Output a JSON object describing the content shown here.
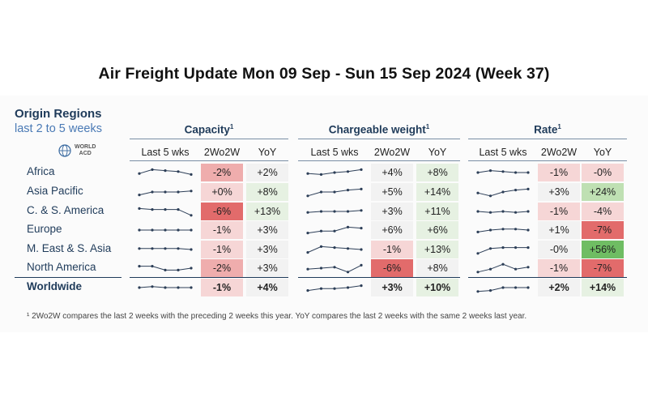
{
  "title": "Air Freight Update Mon 09 Sep - Sun 15 Sep 2024 (Week 37)",
  "origin": {
    "title": "Origin Regions",
    "subtitle": "last 2 to 5 weeks"
  },
  "logo": {
    "line1": "WORLD",
    "line2": "ACD",
    "icon": "globe-icon"
  },
  "groups": [
    {
      "key": "capacity",
      "label": "Capacity",
      "sup": "1"
    },
    {
      "key": "cw",
      "label": "Chargeable weight",
      "sup": "1"
    },
    {
      "key": "rate",
      "label": "Rate",
      "sup": "1"
    }
  ],
  "subheaders": {
    "spark": "Last 5 wks",
    "w2": "2Wo2W",
    "yoy": "YoY"
  },
  "colors": {
    "neg_light": "#f6d6d6",
    "neg_mid": "#efadad",
    "neg_strong": "#e26b6b",
    "pos_light": "#e6f1e2",
    "pos_mid": "#bfe0b3",
    "pos_strong": "#6fbd63",
    "neutral": "#f2f2f2",
    "spark": "#2c3e57"
  },
  "chart_data": {
    "type": "table",
    "title": "Air Freight Update Mon 09 Sep - Sun 15 Sep 2024 (Week 37)",
    "regions": [
      "Africa",
      "Asia Pacific",
      "C. & S. America",
      "Europe",
      "M. East & S. Asia",
      "North America",
      "Worldwide"
    ],
    "rows": [
      {
        "region": "Africa",
        "capacity": {
          "w2": "-2%",
          "yoy": "+2%",
          "w2_tone": "neg_mid",
          "yoy_tone": "neutral",
          "trend": [
            0.6,
            0.2,
            0.3,
            0.4,
            0.7
          ]
        },
        "cw": {
          "w2": "+4%",
          "yoy": "+8%",
          "w2_tone": "neutral",
          "yoy_tone": "pos_light",
          "trend": [
            0.6,
            0.7,
            0.5,
            0.4,
            0.2
          ]
        },
        "rate": {
          "w2": "-1%",
          "yoy": "-0%",
          "w2_tone": "neg_light",
          "yoy_tone": "neg_light",
          "trend": [
            0.5,
            0.3,
            0.4,
            0.5,
            0.5
          ]
        }
      },
      {
        "region": "Asia Pacific",
        "capacity": {
          "w2": "+0%",
          "yoy": "+8%",
          "w2_tone": "neg_light",
          "yoy_tone": "pos_light",
          "trend": [
            0.8,
            0.5,
            0.5,
            0.5,
            0.4
          ]
        },
        "cw": {
          "w2": "+5%",
          "yoy": "+14%",
          "w2_tone": "neutral",
          "yoy_tone": "pos_light",
          "trend": [
            0.9,
            0.5,
            0.5,
            0.3,
            0.2
          ]
        },
        "rate": {
          "w2": "+3%",
          "yoy": "+24%",
          "w2_tone": "neutral",
          "yoy_tone": "pos_mid",
          "trend": [
            0.6,
            0.9,
            0.5,
            0.3,
            0.2
          ]
        }
      },
      {
        "region": "C. & S. America",
        "capacity": {
          "w2": "-6%",
          "yoy": "+13%",
          "w2_tone": "neg_strong",
          "yoy_tone": "pos_light",
          "trend": [
            0.2,
            0.3,
            0.3,
            0.3,
            0.9
          ]
        },
        "cw": {
          "w2": "+3%",
          "yoy": "+11%",
          "w2_tone": "neutral",
          "yoy_tone": "pos_light",
          "trend": [
            0.6,
            0.5,
            0.5,
            0.5,
            0.4
          ]
        },
        "rate": {
          "w2": "-1%",
          "yoy": "-4%",
          "w2_tone": "neg_light",
          "yoy_tone": "neg_light",
          "trend": [
            0.5,
            0.6,
            0.5,
            0.6,
            0.5
          ]
        }
      },
      {
        "region": "Europe",
        "capacity": {
          "w2": "-1%",
          "yoy": "+3%",
          "w2_tone": "neg_light",
          "yoy_tone": "neutral",
          "trend": [
            0.5,
            0.5,
            0.5,
            0.5,
            0.5
          ]
        },
        "cw": {
          "w2": "+6%",
          "yoy": "+6%",
          "w2_tone": "neutral",
          "yoy_tone": "pos_light",
          "trend": [
            0.8,
            0.6,
            0.6,
            0.2,
            0.3
          ]
        },
        "rate": {
          "w2": "+1%",
          "yoy": "-7%",
          "w2_tone": "neutral",
          "yoy_tone": "neg_strong",
          "trend": [
            0.7,
            0.5,
            0.4,
            0.4,
            0.5
          ]
        }
      },
      {
        "region": "M. East & S. Asia",
        "capacity": {
          "w2": "-1%",
          "yoy": "+3%",
          "w2_tone": "neg_light",
          "yoy_tone": "neutral",
          "trend": [
            0.4,
            0.4,
            0.4,
            0.4,
            0.5
          ]
        },
        "cw": {
          "w2": "-1%",
          "yoy": "+13%",
          "w2_tone": "neg_light",
          "yoy_tone": "pos_light",
          "trend": [
            0.8,
            0.2,
            0.3,
            0.4,
            0.5
          ]
        },
        "rate": {
          "w2": "-0%",
          "yoy": "+56%",
          "w2_tone": "neutral",
          "yoy_tone": "pos_strong",
          "trend": [
            0.9,
            0.4,
            0.3,
            0.3,
            0.3
          ]
        }
      },
      {
        "region": "North America",
        "capacity": {
          "w2": "-2%",
          "yoy": "+3%",
          "w2_tone": "neg_mid",
          "yoy_tone": "neutral",
          "trend": [
            0.3,
            0.3,
            0.7,
            0.7,
            0.5
          ]
        },
        "cw": {
          "w2": "-6%",
          "yoy": "+8%",
          "w2_tone": "neg_strong",
          "yoy_tone": "neutral",
          "trend": [
            0.6,
            0.5,
            0.4,
            0.9,
            0.2
          ]
        },
        "rate": {
          "w2": "-1%",
          "yoy": "-7%",
          "w2_tone": "neg_light",
          "yoy_tone": "neg_strong",
          "trend": [
            0.9,
            0.6,
            0.1,
            0.6,
            0.4
          ]
        }
      },
      {
        "region": "Worldwide",
        "capacity": {
          "w2": "-1%",
          "yoy": "+4%",
          "w2_tone": "neg_light",
          "yoy_tone": "neutral",
          "trend": [
            0.5,
            0.4,
            0.5,
            0.5,
            0.5
          ]
        },
        "cw": {
          "w2": "+3%",
          "yoy": "+10%",
          "w2_tone": "neutral",
          "yoy_tone": "pos_light",
          "trend": [
            0.8,
            0.6,
            0.6,
            0.5,
            0.3
          ]
        },
        "rate": {
          "w2": "+2%",
          "yoy": "+14%",
          "w2_tone": "neutral",
          "yoy_tone": "pos_light",
          "trend": [
            0.9,
            0.8,
            0.5,
            0.5,
            0.5
          ]
        }
      }
    ]
  },
  "footnote": "¹ 2Wo2W compares the last 2 weeks with the preceding 2 weeks this year. YoY compares the last 2 weeks with the same 2 weeks last year."
}
